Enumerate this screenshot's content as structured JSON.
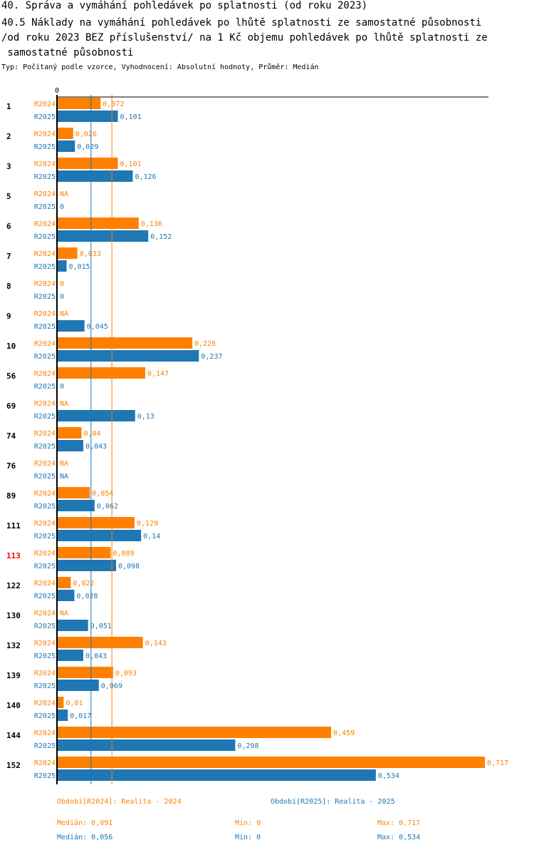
{
  "header": {
    "title": "40. Správa a vymáhání pohledávek po splatnosti (od roku 2023)",
    "subtitle_lines": [
      "40.5 Náklady na vymáhání pohledávek po lhůtě splatnosti ze samostatné působnosti",
      "/od roku 2023 BEZ příslušenství/ na 1 Kč objemu pohledávek po lhůtě splatnosti ze",
      " samostatné působnosti"
    ],
    "typ": "Typ: Počítaný podle vzorce, Vyhodnocení: Absolutní hodnoty, Průměr: Medián"
  },
  "colors": {
    "r2024": "#ff8000",
    "r2025": "#1f77b4",
    "highlight": "#ff0000",
    "axis": "#000000"
  },
  "chart_data": {
    "type": "bar",
    "orientation": "horizontal",
    "axis_zero_label": "0",
    "xlim": [
      0,
      0.717
    ],
    "series": [
      {
        "name": "R2024",
        "period_label": "Období[R2024]: Realita - 2024"
      },
      {
        "name": "R2025",
        "period_label": "Období[R2025]: Realita - 2025"
      }
    ],
    "median_lines": {
      "R2024": 0.091,
      "R2025": 0.056
    },
    "categories": [
      {
        "label": "1",
        "highlight": false,
        "r2024": 0.072,
        "r2025": 0.101,
        "r2024_label": "0,072",
        "r2025_label": "0,101"
      },
      {
        "label": "2",
        "highlight": false,
        "r2024": 0.026,
        "r2025": 0.029,
        "r2024_label": "0,026",
        "r2025_label": "0,029"
      },
      {
        "label": "3",
        "highlight": false,
        "r2024": 0.101,
        "r2025": 0.126,
        "r2024_label": "0,101",
        "r2025_label": "0,126"
      },
      {
        "label": "5",
        "highlight": false,
        "r2024": null,
        "r2025": 0,
        "r2024_label": "NA",
        "r2025_label": "0"
      },
      {
        "label": "6",
        "highlight": false,
        "r2024": 0.136,
        "r2025": 0.152,
        "r2024_label": "0,136",
        "r2025_label": "0,152"
      },
      {
        "label": "7",
        "highlight": false,
        "r2024": 0.033,
        "r2025": 0.015,
        "r2024_label": "0,033",
        "r2025_label": "0,015"
      },
      {
        "label": "8",
        "highlight": false,
        "r2024": 0,
        "r2025": 0,
        "r2024_label": "0",
        "r2025_label": "0"
      },
      {
        "label": "9",
        "highlight": false,
        "r2024": null,
        "r2025": 0.045,
        "r2024_label": "NA",
        "r2025_label": "0,045"
      },
      {
        "label": "10",
        "highlight": false,
        "r2024": 0.226,
        "r2025": 0.237,
        "r2024_label": "0,226",
        "r2025_label": "0,237"
      },
      {
        "label": "56",
        "highlight": false,
        "r2024": 0.147,
        "r2025": 0,
        "r2024_label": "0,147",
        "r2025_label": "0"
      },
      {
        "label": "69",
        "highlight": false,
        "r2024": null,
        "r2025": 0.13,
        "r2024_label": "NA",
        "r2025_label": "0,13"
      },
      {
        "label": "74",
        "highlight": false,
        "r2024": 0.04,
        "r2025": 0.043,
        "r2024_label": "0,04",
        "r2025_label": "0,043"
      },
      {
        "label": "76",
        "highlight": false,
        "r2024": null,
        "r2025": null,
        "r2024_label": "NA",
        "r2025_label": "NA"
      },
      {
        "label": "89",
        "highlight": false,
        "r2024": 0.054,
        "r2025": 0.062,
        "r2024_label": "0,054",
        "r2025_label": "0,062"
      },
      {
        "label": "111",
        "highlight": false,
        "r2024": 0.129,
        "r2025": 0.14,
        "r2024_label": "0,129",
        "r2025_label": "0,14"
      },
      {
        "label": "113",
        "highlight": true,
        "r2024": 0.089,
        "r2025": 0.098,
        "r2024_label": "0,089",
        "r2025_label": "0,098"
      },
      {
        "label": "122",
        "highlight": false,
        "r2024": 0.022,
        "r2025": 0.028,
        "r2024_label": "0,022",
        "r2025_label": "0,028"
      },
      {
        "label": "130",
        "highlight": false,
        "r2024": null,
        "r2025": 0.051,
        "r2024_label": "NA",
        "r2025_label": "0,051"
      },
      {
        "label": "132",
        "highlight": false,
        "r2024": 0.143,
        "r2025": 0.043,
        "r2024_label": "0,143",
        "r2025_label": "0,043"
      },
      {
        "label": "139",
        "highlight": false,
        "r2024": 0.093,
        "r2025": 0.069,
        "r2024_label": "0,093",
        "r2025_label": "0,069"
      },
      {
        "label": "140",
        "highlight": false,
        "r2024": 0.01,
        "r2025": 0.017,
        "r2024_label": "0,01",
        "r2025_label": "0,017"
      },
      {
        "label": "144",
        "highlight": false,
        "r2024": 0.459,
        "r2025": 0.298,
        "r2024_label": "0,459",
        "r2025_label": "0,298"
      },
      {
        "label": "152",
        "highlight": false,
        "r2024": 0.717,
        "r2025": 0.534,
        "r2024_label": "0,717",
        "r2025_label": "0,534"
      }
    ]
  },
  "footer": {
    "period_2024": "Období[R2024]: Realita - 2024",
    "period_2025": "Období[R2025]: Realita - 2025",
    "stats_2024": {
      "median": "Medián: 0,091",
      "min": "Min: 0",
      "max": "Max: 0,717"
    },
    "stats_2025": {
      "median": "Medián: 0,056",
      "min": "Min: 0",
      "max": "Max: 0,534"
    }
  }
}
